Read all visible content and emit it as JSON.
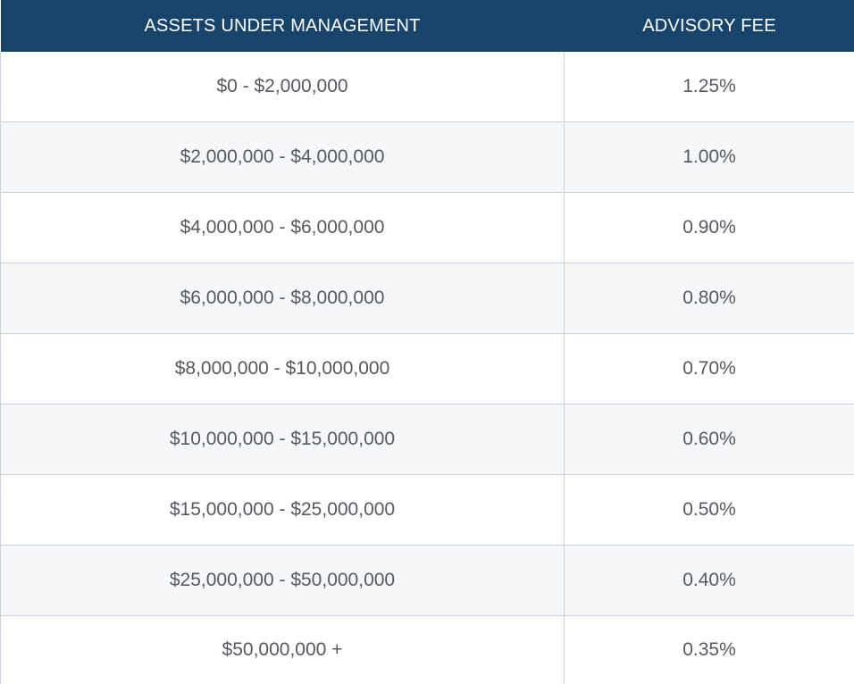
{
  "colors": {
    "header_background": "#18436b",
    "header_text": "#ffffff",
    "row_odd_background": "#ffffff",
    "row_even_background": "#f6f7f9",
    "cell_text": "#555a60",
    "border": "#c9d1dc"
  },
  "table": {
    "headers": {
      "assets": "ASSETS UNDER MANAGEMENT",
      "fee": "ADVISORY FEE"
    },
    "rows": [
      {
        "assets": "$0 - $2,000,000",
        "fee": "1.25%"
      },
      {
        "assets": "$2,000,000 - $4,000,000",
        "fee": "1.00%"
      },
      {
        "assets": "$4,000,000 - $6,000,000",
        "fee": "0.90%"
      },
      {
        "assets": "$6,000,000 - $8,000,000",
        "fee": "0.80%"
      },
      {
        "assets": "$8,000,000 - $10,000,000",
        "fee": "0.70%"
      },
      {
        "assets": "$10,000,000 - $15,000,000",
        "fee": "0.60%"
      },
      {
        "assets": "$15,000,000 - $25,000,000",
        "fee": "0.50%"
      },
      {
        "assets": "$25,000,000 - $50,000,000",
        "fee": "0.40%"
      },
      {
        "assets": "$50,000,000 +",
        "fee": "0.35%"
      }
    ]
  }
}
